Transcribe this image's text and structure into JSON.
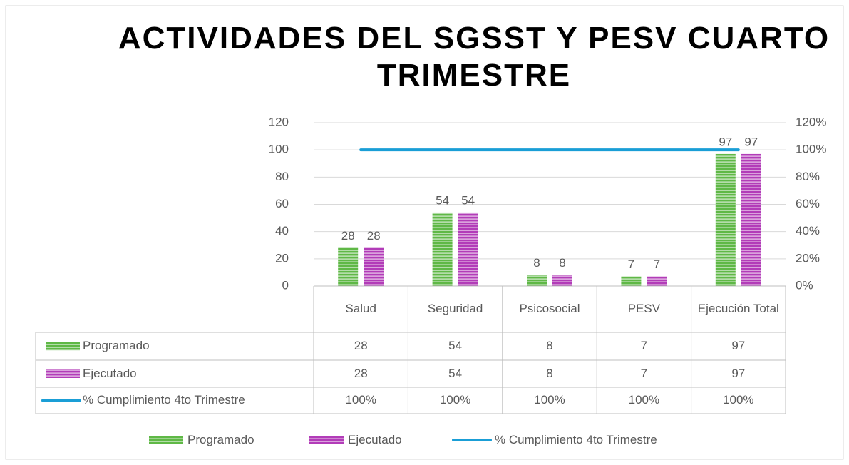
{
  "chart_data": {
    "type": "bar",
    "title": "ACTIVIDADES DEL SGSST Y PESV CUARTO TRIMESTRE",
    "categories": [
      "Salud",
      "Seguridad",
      "Psicosocial",
      "PESV",
      "Ejecución Total"
    ],
    "series": [
      {
        "name": "Programado",
        "color": "#5fb846",
        "values": [
          28,
          54,
          8,
          7,
          97
        ]
      },
      {
        "name": "Ejecutado",
        "color": "#b23cb8",
        "values": [
          28,
          54,
          8,
          7,
          97
        ]
      },
      {
        "name": "% Cumplimiento 4to Trimestre",
        "color": "#1a9ed6",
        "type": "line",
        "axis": "y2",
        "values": [
          100,
          100,
          100,
          100,
          100
        ],
        "value_labels": [
          "100%",
          "100%",
          "100%",
          "100%",
          "100%"
        ]
      }
    ],
    "ylim": [
      0,
      120
    ],
    "yticks": [
      0,
      20,
      40,
      60,
      80,
      100,
      120
    ],
    "y2lim": [
      0,
      120
    ],
    "y2ticks": [
      {
        "value": 0,
        "label": "0%"
      },
      {
        "value": 20,
        "label": "20%"
      },
      {
        "value": 40,
        "label": "40%"
      },
      {
        "value": 60,
        "label": "60%"
      },
      {
        "value": 80,
        "label": "80%"
      },
      {
        "value": 100,
        "label": "100%"
      },
      {
        "value": 120,
        "label": "120%"
      }
    ],
    "grid": true,
    "legend": "bottom",
    "data_table": true
  }
}
